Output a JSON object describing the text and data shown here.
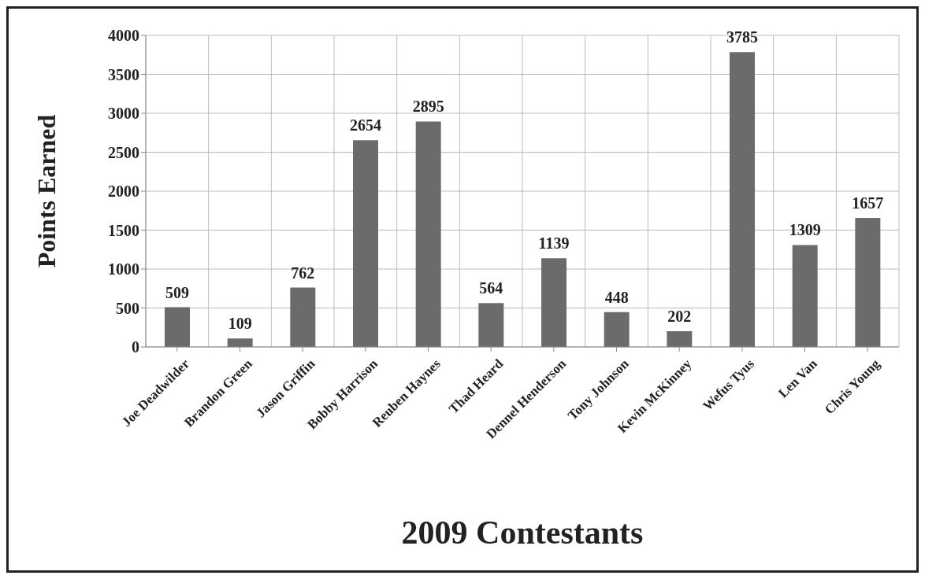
{
  "chart_data": {
    "type": "bar",
    "xlabel": "2009 Contestants",
    "ylabel": "Points Earned",
    "categories": [
      "Joe Deadwilder",
      "Brandon Green",
      "Jason Griffin",
      "Bobby Harrison",
      "Reuben Haynes",
      "Thad Heard",
      "Dennel Henderson",
      "Tony Johnson",
      "Kevin McKinney",
      "Wefus Tyus",
      "Len Van",
      "Chris Young"
    ],
    "values": [
      509,
      109,
      762,
      2654,
      2895,
      564,
      1139,
      448,
      202,
      3785,
      1309,
      1657
    ],
    "color": "#6b6b6b",
    "ylim": [
      0,
      4000
    ],
    "yticks": [
      0,
      500,
      1000,
      1500,
      2000,
      2500,
      3000,
      3500,
      4000
    ],
    "grid": true,
    "data_labels": true
  }
}
